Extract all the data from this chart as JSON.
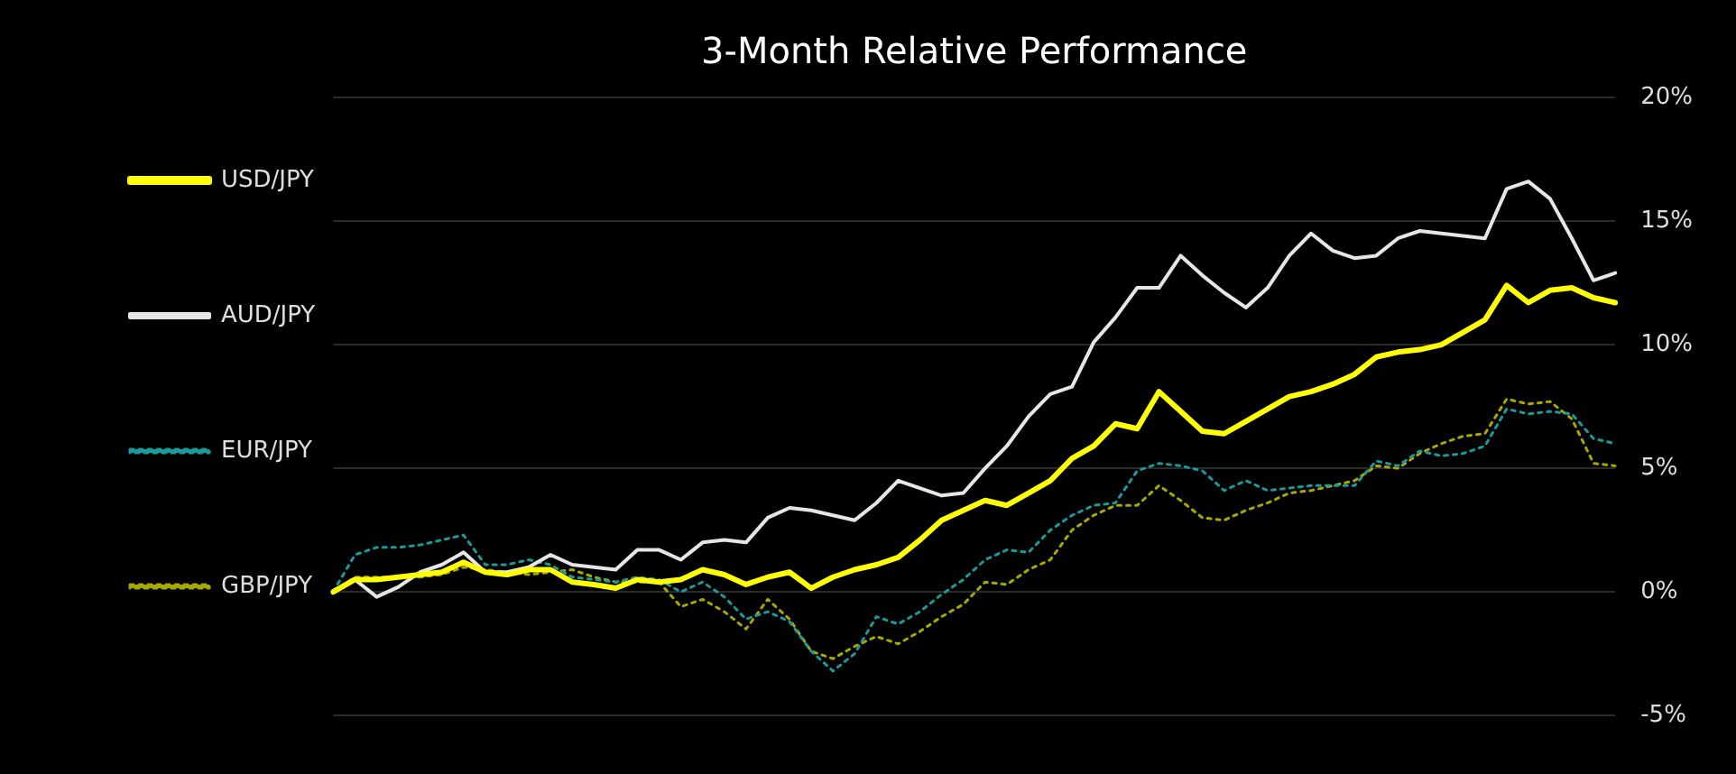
{
  "chart_data": {
    "type": "line",
    "title": "3-Month Relative Performance",
    "categories": [
      null,
      null,
      null,
      null,
      null,
      null,
      null,
      null,
      null,
      null,
      null,
      null,
      null,
      null,
      null,
      null,
      null,
      null,
      null,
      null,
      null,
      null,
      null,
      null,
      null,
      null,
      null,
      null,
      null,
      null,
      null,
      null,
      null,
      null,
      null,
      null,
      null,
      null,
      null,
      null,
      null,
      null,
      null,
      null,
      null,
      null,
      null,
      null,
      null,
      null,
      null,
      null,
      null,
      null,
      null,
      null,
      null,
      null,
      null,
      null
    ],
    "series": [
      {
        "name": "USD/JPY",
        "color": "#ffff00",
        "line_style": "solid",
        "values": [
          0,
          0.5,
          0.5,
          0.6,
          0.7,
          0.8,
          1.2,
          0.8,
          0.7,
          0.9,
          0.9,
          0.4,
          0.3,
          0.15,
          0.5,
          0.4,
          0.5,
          0.9,
          0.7,
          0.3,
          0.6,
          0.8,
          0.15,
          0.6,
          0.9,
          1.1,
          1.4,
          2.1,
          2.9,
          3.3,
          3.7,
          3.5,
          4.0,
          4.5,
          5.4,
          5.9,
          6.8,
          6.6,
          8.1,
          7.3,
          6.5,
          6.4,
          6.9,
          7.4,
          7.9,
          8.1,
          8.4,
          8.8,
          9.5,
          9.7,
          9.8,
          10.0,
          10.5,
          11.0,
          12.4,
          11.7,
          12.2,
          12.3,
          11.9,
          11.7
        ]
      },
      {
        "name": "AUD/JPY",
        "color": "#e6e6e6",
        "line_style": "solid",
        "values": [
          0,
          0.5,
          -0.2,
          0.2,
          0.8,
          1.1,
          1.6,
          0.8,
          0.8,
          1.0,
          1.5,
          1.1,
          1.0,
          0.9,
          1.7,
          1.7,
          1.3,
          2.0,
          2.1,
          2.0,
          3.0,
          3.4,
          3.3,
          3.1,
          2.9,
          3.6,
          4.5,
          4.2,
          3.9,
          4.0,
          5.0,
          5.9,
          7.1,
          8.0,
          8.3,
          10.1,
          11.1,
          12.3,
          12.3,
          13.6,
          12.8,
          12.1,
          11.5,
          12.3,
          13.6,
          14.5,
          13.8,
          13.5,
          13.6,
          14.3,
          14.6,
          14.5,
          14.4,
          14.3,
          16.3,
          16.6,
          15.9,
          14.3,
          12.6,
          12.9
        ]
      },
      {
        "name": "EUR/JPY",
        "color": "#1a9a9a",
        "line_style": "dotted",
        "values": [
          0,
          1.5,
          1.8,
          1.8,
          1.9,
          2.1,
          2.3,
          1.1,
          1.1,
          1.3,
          1.1,
          0.6,
          0.5,
          0.4,
          0.6,
          0.5,
          0.0,
          0.4,
          -0.2,
          -1.1,
          -0.8,
          -1.2,
          -2.4,
          -3.2,
          -2.5,
          -1.0,
          -1.3,
          -0.8,
          -0.1,
          0.5,
          1.3,
          1.7,
          1.6,
          2.5,
          3.1,
          3.5,
          3.6,
          4.9,
          5.2,
          5.1,
          4.9,
          4.1,
          4.5,
          4.1,
          4.2,
          4.3,
          4.3,
          4.3,
          5.3,
          5.1,
          5.7,
          5.5,
          5.6,
          5.9,
          7.4,
          7.2,
          7.3,
          7.2,
          6.2,
          6.0
        ]
      },
      {
        "name": "GBP/JPY",
        "color": "#a8a800",
        "line_style": "dotted",
        "values": [
          0,
          0.6,
          0.6,
          0.6,
          0.6,
          0.7,
          1.0,
          0.9,
          0.8,
          0.7,
          0.8,
          0.9,
          0.6,
          0.4,
          0.4,
          0.4,
          -0.6,
          -0.3,
          -0.8,
          -1.5,
          -0.3,
          -1.1,
          -2.4,
          -2.7,
          -2.2,
          -1.8,
          -2.1,
          -1.6,
          -1.0,
          -0.5,
          0.4,
          0.3,
          0.9,
          1.3,
          2.5,
          3.1,
          3.5,
          3.5,
          4.3,
          3.7,
          3.0,
          2.9,
          3.3,
          3.6,
          4.0,
          4.1,
          4.3,
          4.5,
          5.1,
          5.0,
          5.6,
          6.0,
          6.3,
          6.4,
          7.8,
          7.6,
          7.7,
          7.0,
          5.2,
          5.1
        ]
      }
    ],
    "ylim": [
      -5,
      20
    ],
    "yticks": [
      {
        "value": -5,
        "label": "-5%"
      },
      {
        "value": 0,
        "label": "0%"
      },
      {
        "value": 5,
        "label": "5%"
      },
      {
        "value": 10,
        "label": "10%"
      },
      {
        "value": 15,
        "label": "15%"
      },
      {
        "value": 20,
        "label": "20%"
      }
    ],
    "grid": "y",
    "legend": "left",
    "marker": "none"
  }
}
